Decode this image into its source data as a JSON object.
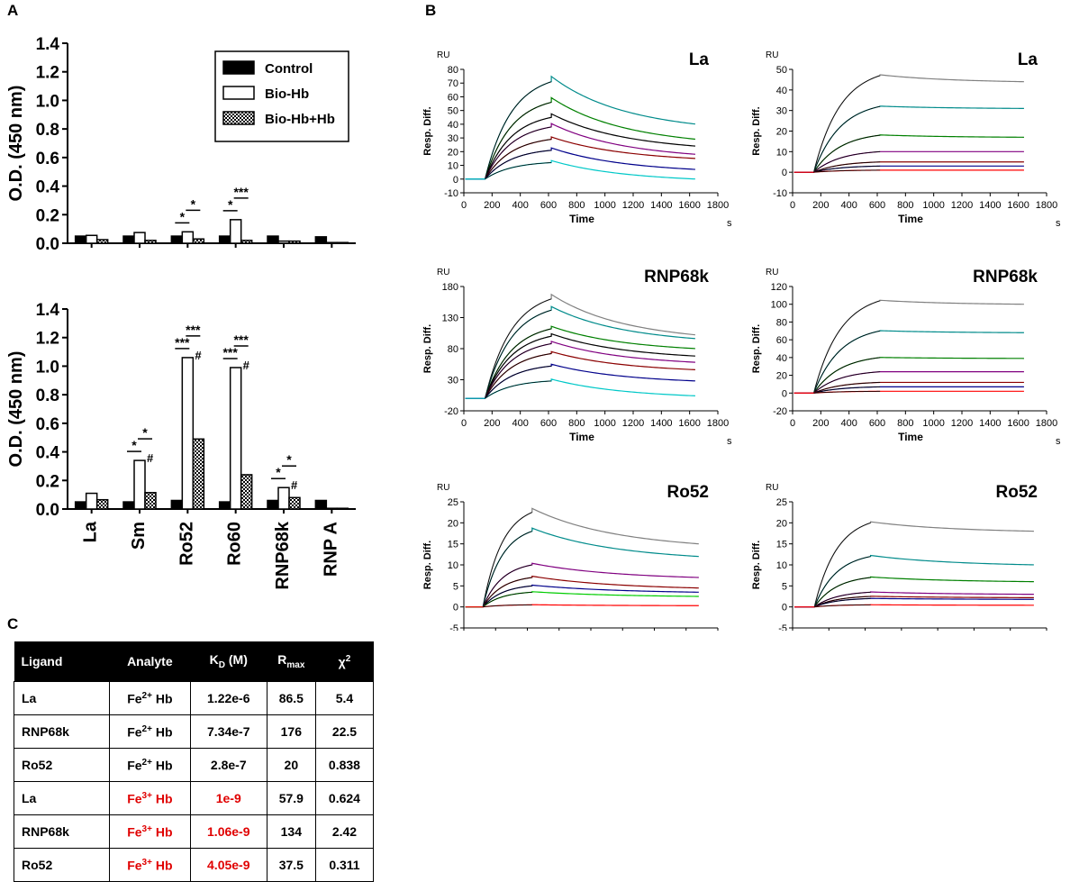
{
  "panels": {
    "a": "A",
    "b": "B",
    "c": "C"
  },
  "chart_data": [
    {
      "id": "A-top",
      "type": "bar",
      "ylabel": "O.D. (450 nm)",
      "ylim": [
        0,
        1.4
      ],
      "yticks": [
        "0.0",
        "0.2",
        "0.4",
        "0.6",
        "0.8",
        "1.0",
        "1.2",
        "1.4"
      ],
      "categories": [
        "La",
        "Sm",
        "Ro52",
        "Ro60",
        "RNP68k",
        "RNP A"
      ],
      "series": [
        {
          "name": "Control",
          "values": [
            0.05,
            0.05,
            0.05,
            0.05,
            0.05,
            0.045
          ]
        },
        {
          "name": "Bio-Hb",
          "values": [
            0.055,
            0.075,
            0.08,
            0.165,
            0.015,
            0.005
          ]
        },
        {
          "name": "Bio-Hb+Hb",
          "values": [
            0.025,
            0.02,
            0.03,
            0.02,
            0.015,
            0.005
          ]
        }
      ],
      "annotations": [
        {
          "cat": 2,
          "from": 0,
          "to": 1,
          "label": "*"
        },
        {
          "cat": 2,
          "from": 1,
          "to": 2,
          "label": "*"
        },
        {
          "cat": 3,
          "from": 0,
          "to": 1,
          "label": "*"
        },
        {
          "cat": 3,
          "from": 1,
          "to": 2,
          "label": "***"
        }
      ],
      "legend": [
        "Control",
        "Bio-Hb",
        "Bio-Hb+Hb"
      ],
      "legend_position": "top-right"
    },
    {
      "id": "A-bottom",
      "type": "bar",
      "ylabel": "O.D. (450 nm)",
      "ylim": [
        0,
        1.4
      ],
      "yticks": [
        "0.0",
        "0.2",
        "0.4",
        "0.6",
        "0.8",
        "1.0",
        "1.2",
        "1.4"
      ],
      "categories": [
        "La",
        "Sm",
        "Ro52",
        "Ro60",
        "RNP68k",
        "RNP A"
      ],
      "series": [
        {
          "name": "Control",
          "values": [
            0.05,
            0.05,
            0.06,
            0.05,
            0.06,
            0.06
          ]
        },
        {
          "name": "Bio-Hb",
          "values": [
            0.11,
            0.34,
            1.06,
            0.99,
            0.15,
            0.005
          ]
        },
        {
          "name": "Bio-Hb+Hb",
          "values": [
            0.065,
            0.115,
            0.49,
            0.24,
            0.08,
            0.005
          ]
        }
      ],
      "hash_marks": [
        {
          "cat": 1,
          "series": 1,
          "label": "#"
        },
        {
          "cat": 2,
          "series": 1,
          "label": "#"
        },
        {
          "cat": 3,
          "series": 1,
          "label": "#"
        },
        {
          "cat": 4,
          "series": 1,
          "label": "#"
        }
      ],
      "annotations": [
        {
          "cat": 1,
          "from": 0,
          "to": 1,
          "label": "*"
        },
        {
          "cat": 1,
          "from": 1,
          "to": 2,
          "label": "*"
        },
        {
          "cat": 2,
          "from": 0,
          "to": 1,
          "label": "***"
        },
        {
          "cat": 2,
          "from": 1,
          "to": 2,
          "label": "***"
        },
        {
          "cat": 3,
          "from": 0,
          "to": 1,
          "label": "***"
        },
        {
          "cat": 3,
          "from": 1,
          "to": 2,
          "label": "***"
        },
        {
          "cat": 4,
          "from": 0,
          "to": 1,
          "label": "*"
        },
        {
          "cat": 4,
          "from": 1,
          "to": 2,
          "label": "*"
        }
      ]
    },
    {
      "id": "B-1",
      "type": "line",
      "title": "La",
      "yunit": "RU",
      "xunit": "s",
      "ylabel": "Resp. Diff.",
      "xlabel": "Time",
      "ylim": [
        -10,
        80
      ],
      "yticks": [
        -10,
        0,
        10,
        20,
        30,
        40,
        50,
        60,
        70,
        80
      ],
      "xlim": [
        0,
        1800
      ],
      "xticks": [
        0,
        200,
        400,
        600,
        800,
        1000,
        1200,
        1400,
        1600,
        1800
      ],
      "inject_start": 150,
      "inject_end": 620,
      "x_end": 1650,
      "series": [
        {
          "color": "#008b8b",
          "peak": 71,
          "end": 40
        },
        {
          "color": "#008000",
          "peak": 56,
          "end": 29
        },
        {
          "color": "#000000",
          "peak": 45,
          "end": 24
        },
        {
          "color": "#800080",
          "peak": 38,
          "end": 18
        },
        {
          "color": "#8b0000",
          "peak": 29,
          "end": 15
        },
        {
          "color": "#00008b",
          "peak": 21,
          "end": 7
        },
        {
          "color": "#00c8c8",
          "peak": 12,
          "end": 0
        }
      ]
    },
    {
      "id": "B-2",
      "type": "line",
      "title": "La",
      "yunit": "RU",
      "xunit": "s",
      "ylabel": "Resp. Diff.",
      "xlabel": "Time",
      "ylim": [
        -10,
        50
      ],
      "yticks": [
        -10,
        0,
        10,
        20,
        30,
        40,
        50
      ],
      "xlim": [
        0,
        1800
      ],
      "xticks": [
        0,
        200,
        400,
        600,
        800,
        1000,
        1200,
        1400,
        1600,
        1800
      ],
      "inject_start": 150,
      "inject_end": 620,
      "x_end": 1650,
      "series": [
        {
          "color": "#808080",
          "peak": 47,
          "end": 44
        },
        {
          "color": "#008b8b",
          "peak": 32,
          "end": 31
        },
        {
          "color": "#008000",
          "peak": 18,
          "end": 17
        },
        {
          "color": "#800080",
          "peak": 10,
          "end": 10
        },
        {
          "color": "#8b0000",
          "peak": 5,
          "end": 5
        },
        {
          "color": "#00008b",
          "peak": 3,
          "end": 3
        },
        {
          "color": "#ff0000",
          "peak": 1,
          "end": 1
        }
      ]
    },
    {
      "id": "B-3",
      "type": "line",
      "title": "RNP68k",
      "yunit": "RU",
      "xunit": "s",
      "ylabel": "Resp. Diff.",
      "xlabel": "Time",
      "ylim": [
        -20,
        180
      ],
      "yticks": [
        -20,
        30,
        80,
        130,
        180
      ],
      "xlim": [
        0,
        1800
      ],
      "xticks": [
        0,
        200,
        400,
        600,
        800,
        1000,
        1200,
        1400,
        1600,
        1800
      ],
      "inject_start": 150,
      "inject_end": 620,
      "x_end": 1650,
      "series": [
        {
          "color": "#808080",
          "peak": 160,
          "end": 102
        },
        {
          "color": "#008b8b",
          "peak": 142,
          "end": 96
        },
        {
          "color": "#008000",
          "peak": 112,
          "end": 80
        },
        {
          "color": "#000000",
          "peak": 100,
          "end": 68
        },
        {
          "color": "#800080",
          "peak": 88,
          "end": 58
        },
        {
          "color": "#8b0000",
          "peak": 72,
          "end": 46
        },
        {
          "color": "#00008b",
          "peak": 52,
          "end": 28
        },
        {
          "color": "#00c8c8",
          "peak": 28,
          "end": 4
        }
      ]
    },
    {
      "id": "B-4",
      "type": "line",
      "title": "RNP68k",
      "yunit": "RU",
      "xunit": "s",
      "ylabel": "Resp. Diff.",
      "xlabel": "Time",
      "ylim": [
        -20,
        120
      ],
      "yticks": [
        -20,
        0,
        20,
        40,
        60,
        80,
        100,
        120
      ],
      "xlim": [
        0,
        1800
      ],
      "xticks": [
        0,
        200,
        400,
        600,
        800,
        1000,
        1200,
        1400,
        1600,
        1800
      ],
      "inject_start": 150,
      "inject_end": 620,
      "x_end": 1650,
      "series": [
        {
          "color": "#808080",
          "peak": 104,
          "end": 100
        },
        {
          "color": "#008b8b",
          "peak": 70,
          "end": 68
        },
        {
          "color": "#008000",
          "peak": 40,
          "end": 39
        },
        {
          "color": "#800080",
          "peak": 24,
          "end": 24
        },
        {
          "color": "#8b0000",
          "peak": 12,
          "end": 12
        },
        {
          "color": "#00008b",
          "peak": 7,
          "end": 7
        },
        {
          "color": "#ff0000",
          "peak": 2,
          "end": 2
        }
      ]
    },
    {
      "id": "B-5",
      "type": "line",
      "title": "Ro52",
      "yunit": "RU",
      "xunit": "s",
      "ylabel": "Resp. Diff.",
      "xlabel": "Time",
      "ylim": [
        -5,
        25
      ],
      "yticks": [
        -5,
        0,
        5,
        10,
        15,
        20,
        25
      ],
      "xlim": [
        0,
        1600
      ],
      "xticks": [
        0,
        200,
        400,
        600,
        800,
        1000,
        1200,
        1400,
        1600
      ],
      "inject_start": 120,
      "inject_end": 430,
      "x_end": 1480,
      "series": [
        {
          "color": "#808080",
          "peak": 22.5,
          "end": 15
        },
        {
          "color": "#008b8b",
          "peak": 18,
          "end": 12
        },
        {
          "color": "#800080",
          "peak": 10,
          "end": 7
        },
        {
          "color": "#8b0000",
          "peak": 7,
          "end": 4.5
        },
        {
          "color": "#00008b",
          "peak": 5,
          "end": 3.5
        },
        {
          "color": "#00cc00",
          "peak": 3.5,
          "end": 2.5
        },
        {
          "color": "#ff0000",
          "peak": 0.5,
          "end": 0.3
        }
      ]
    },
    {
      "id": "B-6",
      "type": "line",
      "title": "Ro52",
      "yunit": "RU",
      "xunit": "s",
      "ylabel": "Resp. Diff.",
      "xlabel": "Time",
      "ylim": [
        -5,
        25
      ],
      "yticks": [
        -5,
        0,
        5,
        10,
        15,
        20,
        25
      ],
      "xlim": [
        0,
        1400
      ],
      "xticks": [
        0,
        200,
        400,
        600,
        800,
        1000,
        1200,
        1400
      ],
      "inject_start": 120,
      "inject_end": 430,
      "x_end": 1340,
      "series": [
        {
          "color": "#808080",
          "peak": 20,
          "end": 18
        },
        {
          "color": "#008b8b",
          "peak": 12,
          "end": 10
        },
        {
          "color": "#008000",
          "peak": 7,
          "end": 6
        },
        {
          "color": "#800080",
          "peak": 3.5,
          "end": 3
        },
        {
          "color": "#8b0000",
          "peak": 2.5,
          "end": 2.2
        },
        {
          "color": "#00008b",
          "peak": 2,
          "end": 1.8
        },
        {
          "color": "#ff0000",
          "peak": 0.5,
          "end": 0.4
        }
      ]
    }
  ],
  "table": {
    "headers": {
      "ligand": "Ligand",
      "analyte": "Analyte",
      "kd_main": "K",
      "kd_sub": "D",
      "kd_unit": " (M)",
      "rmax_main": "R",
      "rmax_sub": "max",
      "chi_main": "χ",
      "chi_sup": "2"
    },
    "rows": [
      {
        "ligand": "La",
        "analyte_main": "Fe",
        "analyte_sup": "2+",
        "analyte_end": " Hb",
        "kd": "1.22e-6",
        "rmax": "86.5",
        "chi": "5.4",
        "red": false
      },
      {
        "ligand": "RNP68k",
        "analyte_main": "Fe",
        "analyte_sup": "2+",
        "analyte_end": " Hb",
        "kd": "7.34e-7",
        "rmax": "176",
        "chi": "22.5",
        "red": false
      },
      {
        "ligand": "Ro52",
        "analyte_main": "Fe",
        "analyte_sup": "2+",
        "analyte_end": " Hb",
        "kd": "2.8e-7",
        "rmax": "20",
        "chi": "0.838",
        "red": false
      },
      {
        "ligand": "La",
        "analyte_main": "Fe",
        "analyte_sup": "3+",
        "analyte_end": " Hb",
        "kd": "1e-9",
        "rmax": "57.9",
        "chi": "0.624",
        "red": true
      },
      {
        "ligand": "RNP68k",
        "analyte_main": "Fe",
        "analyte_sup": "3+",
        "analyte_end": " Hb",
        "kd": "1.06e-9",
        "rmax": "134",
        "chi": "2.42",
        "red": true
      },
      {
        "ligand": "Ro52",
        "analyte_main": "Fe",
        "analyte_sup": "3+",
        "analyte_end": " Hb",
        "kd": "4.05e-9",
        "rmax": "37.5",
        "chi": "0.311",
        "red": true
      }
    ]
  }
}
